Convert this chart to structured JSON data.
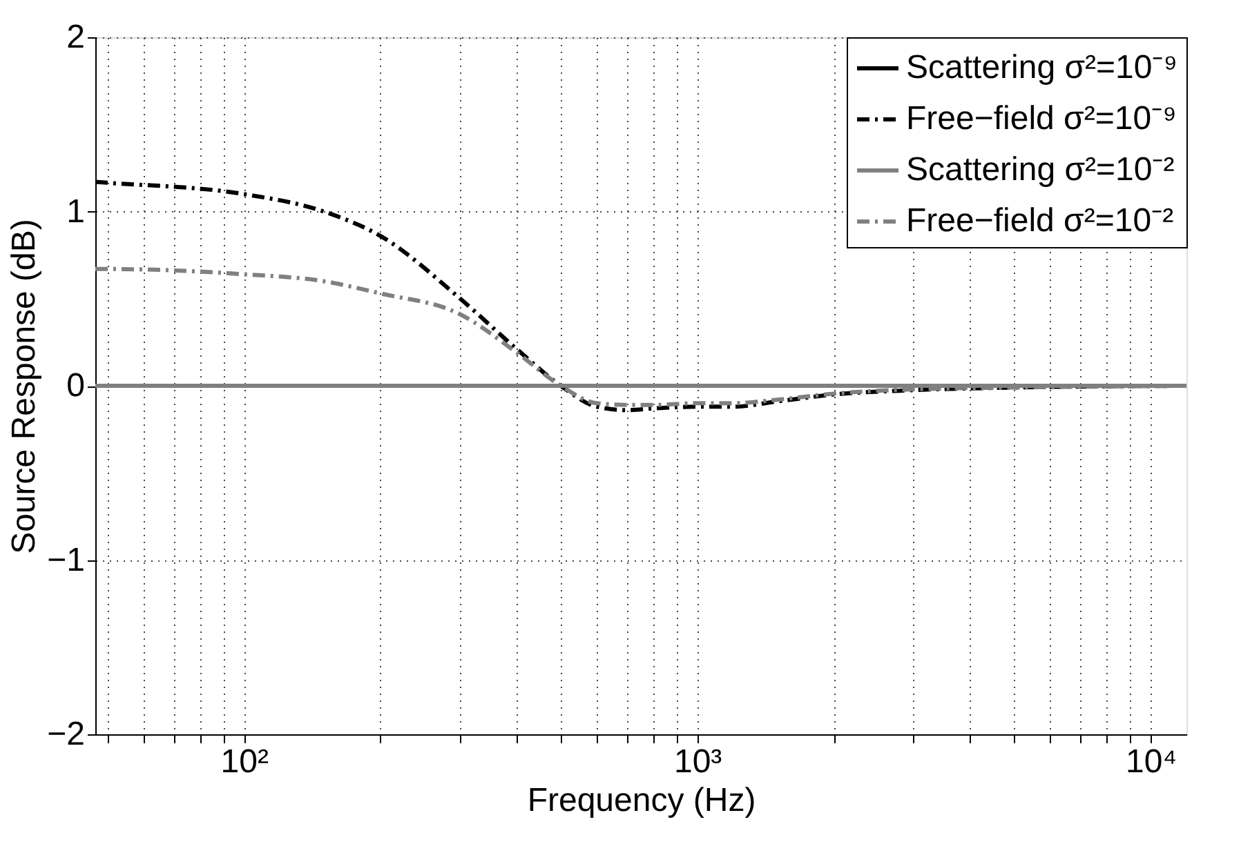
{
  "chart_data": {
    "type": "line",
    "xlabel": "Frequency (Hz)",
    "ylabel": "Source Response (dB)",
    "log": "x",
    "xlim": [
      47,
      12000
    ],
    "ylim": [
      -2,
      2
    ],
    "xticks": [
      {
        "value": 50,
        "label": null
      },
      {
        "value": 60,
        "label": null
      },
      {
        "value": 70,
        "label": null
      },
      {
        "value": 80,
        "label": null
      },
      {
        "value": 90,
        "label": null
      },
      {
        "value": 100,
        "label": "10²"
      },
      {
        "value": 200,
        "label": null
      },
      {
        "value": 300,
        "label": null
      },
      {
        "value": 400,
        "label": null
      },
      {
        "value": 500,
        "label": null
      },
      {
        "value": 600,
        "label": null
      },
      {
        "value": 700,
        "label": null
      },
      {
        "value": 800,
        "label": null
      },
      {
        "value": 900,
        "label": null
      },
      {
        "value": 1000,
        "label": "10³"
      },
      {
        "value": 2000,
        "label": null
      },
      {
        "value": 3000,
        "label": null
      },
      {
        "value": 4000,
        "label": null
      },
      {
        "value": 5000,
        "label": null
      },
      {
        "value": 6000,
        "label": null
      },
      {
        "value": 7000,
        "label": null
      },
      {
        "value": 8000,
        "label": null
      },
      {
        "value": 9000,
        "label": null
      },
      {
        "value": 10000,
        "label": "10⁴"
      }
    ],
    "yticks": [
      {
        "value": -2,
        "label": "−2"
      },
      {
        "value": -1,
        "label": "−1"
      },
      0,
      1,
      2
    ],
    "grid": true,
    "legend": "top right",
    "marker": "none",
    "series": [
      {
        "name": "Scattering σ²=10⁻⁹",
        "color": "#000000",
        "line_style": "solid"
      },
      {
        "name": "Free−field σ²=10⁻⁹",
        "color": "#000000",
        "line_style": "dashed",
        "x": [
          47,
          50,
          100,
          150,
          200,
          300,
          400,
          500,
          600,
          700,
          800,
          1000,
          1200,
          1500,
          2000,
          3000,
          5000,
          12000
        ],
        "values": [
          1.17,
          1.165,
          1.1,
          1.0,
          0.86,
          0.5,
          0.21,
          0.0,
          -0.12,
          -0.14,
          -0.13,
          -0.12,
          -0.12,
          -0.09,
          -0.05,
          -0.025,
          -0.01,
          0
        ]
      },
      {
        "name": "Scattering σ²=10⁻²",
        "color": "#808080",
        "line_style": "solid",
        "x": [
          47,
          12000
        ],
        "values": [
          0,
          0
        ]
      },
      {
        "name": "Free−field σ²=10⁻²",
        "color": "#808080",
        "line_style": "dashed",
        "x": [
          47,
          50,
          100,
          150,
          200,
          300,
          400,
          500,
          600,
          700,
          800,
          1000,
          1200,
          1500,
          2000,
          3000,
          5000,
          12000
        ],
        "values": [
          0.67,
          0.67,
          0.64,
          0.6,
          0.53,
          0.41,
          0.19,
          0.0,
          -0.1,
          -0.11,
          -0.11,
          -0.1,
          -0.1,
          -0.08,
          -0.045,
          -0.02,
          -0.01,
          0
        ]
      }
    ]
  }
}
